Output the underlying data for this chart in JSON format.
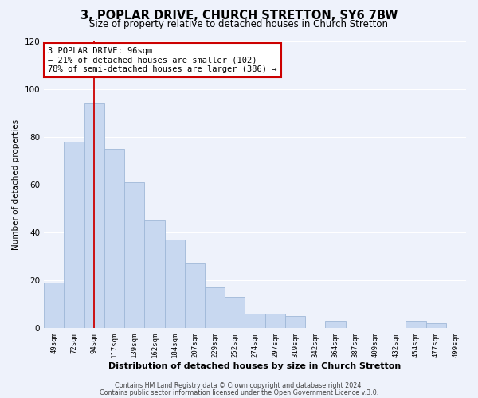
{
  "title": "3, POPLAR DRIVE, CHURCH STRETTON, SY6 7BW",
  "subtitle": "Size of property relative to detached houses in Church Stretton",
  "xlabel": "Distribution of detached houses by size in Church Stretton",
  "ylabel": "Number of detached properties",
  "bar_color": "#c8d8f0",
  "bar_edge_color": "#a0b8d8",
  "highlight_line_color": "#cc0000",
  "categories": [
    "49sqm",
    "72sqm",
    "94sqm",
    "117sqm",
    "139sqm",
    "162sqm",
    "184sqm",
    "207sqm",
    "229sqm",
    "252sqm",
    "274sqm",
    "297sqm",
    "319sqm",
    "342sqm",
    "364sqm",
    "387sqm",
    "409sqm",
    "432sqm",
    "454sqm",
    "477sqm",
    "499sqm"
  ],
  "values": [
    19,
    78,
    94,
    75,
    61,
    45,
    37,
    27,
    17,
    13,
    6,
    6,
    5,
    0,
    3,
    0,
    0,
    0,
    3,
    2,
    0
  ],
  "ylim": [
    0,
    120
  ],
  "yticks": [
    0,
    20,
    40,
    60,
    80,
    100,
    120
  ],
  "annotation_title": "3 POPLAR DRIVE: 96sqm",
  "annotation_line1": "← 21% of detached houses are smaller (102)",
  "annotation_line2": "78% of semi-detached houses are larger (386) →",
  "footer1": "Contains HM Land Registry data © Crown copyright and database right 2024.",
  "footer2": "Contains public sector information licensed under the Open Government Licence v.3.0.",
  "background_color": "#eef2fb",
  "plot_bg_color": "#eef2fb",
  "grid_color": "#ffffff",
  "title_fontsize": 10.5,
  "subtitle_fontsize": 8.5,
  "annotation_box_color": "#ffffff",
  "annotation_box_edge": "#cc0000"
}
